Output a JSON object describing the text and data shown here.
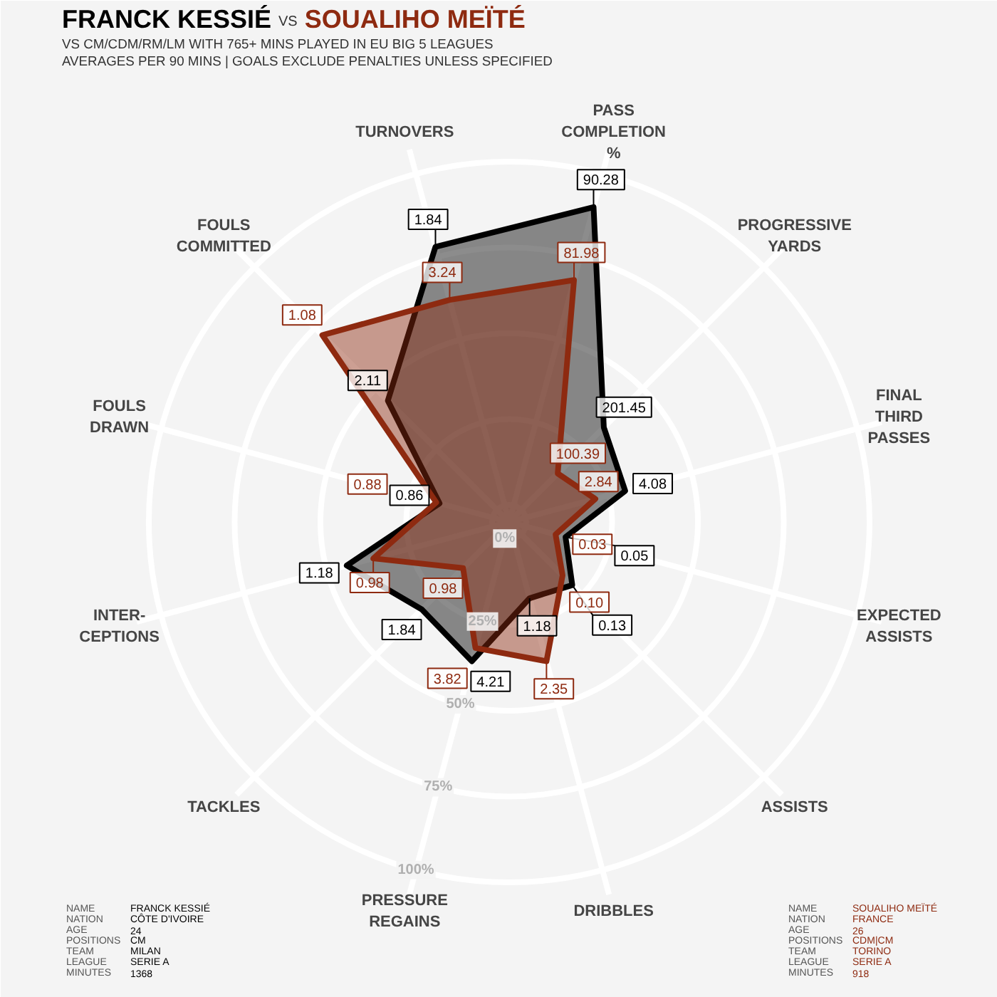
{
  "chart_data": {
    "type": "radar",
    "title": "VS",
    "subtitle": "VS CM/CDM/RM/LM WITH 765+ MINS PLAYED IN EU BIG 5 LEAGUES\nAVERAGES PER 90 MINS | GOALS EXCLUDE PENALTIES UNLESS SPECIFIED",
    "categories": [
      "PASS\nCOMPLETION\n%",
      "PROGRESSIVE\nYARDS",
      "FINAL\nTHIRD\nPASSES",
      "EXPECTED\nASSISTS",
      "ASSISTS",
      "DRIBBLES",
      "PRESSURE\nREGAINS",
      "TACKLES",
      "INTER-\nCEPTIONS",
      "FOULS\nDRAWN",
      "FOULS\nCOMMITTED",
      "TURNOVERS"
    ],
    "series": [
      {
        "name": "FRANCK KESSIÉ",
        "color": "#000000",
        "values": [
          90,
          34,
          30,
          12,
          21,
          18,
          37,
          31,
          44,
          16,
          45,
          78
        ]
      },
      {
        "name": "SOUALIHO MEÏTÉ",
        "color": "#8e2a10",
        "values": [
          68,
          15,
          21,
          9,
          17,
          37,
          33,
          14,
          36,
          17,
          72,
          62
        ]
      }
    ],
    "ylim": [
      -5,
      100
    ],
    "yticks": [
      {
        "value": 0,
        "label": "0%"
      },
      {
        "value": 25,
        "label": "25%"
      },
      {
        "value": 50,
        "label": "50%"
      },
      {
        "value": 75,
        "label": "75%"
      },
      {
        "value": 100,
        "label": "100%"
      }
    ],
    "grid": true,
    "annotations": [
      {
        "text": "90.28",
        "x": "PASS\nCOMPLETION\n%"
      },
      {
        "text": "201.45",
        "x": "PROGRESSIVE\nYARDS"
      },
      {
        "text": "4.08",
        "x": "FINAL\nTHIRD\nPASSES"
      },
      {
        "text": "0.05",
        "x": "EXPECTED\nASSISTS"
      },
      {
        "text": "0.13",
        "x": "ASSISTS"
      },
      {
        "text": "1.18",
        "x": "DRIBBLES"
      },
      {
        "text": "4.21",
        "x": "PRESSURE\nREGAINS"
      },
      {
        "text": "1.84",
        "x": "TACKLES"
      },
      {
        "text": "1.18",
        "x": "INTER-\nCEPTIONS"
      },
      {
        "text": "0.86",
        "x": "FOULS\nDRAWN"
      },
      {
        "text": "2.11",
        "x": "FOULS\nCOMMITTED"
      },
      {
        "text": "1.84",
        "x": "TURNOVERS"
      },
      {
        "text": "81.98",
        "x": "PASS\nCOMPLETION\n%"
      },
      {
        "text": "100.39",
        "x": "PROGRESSIVE\nYARDS"
      },
      {
        "text": "2.84",
        "x": "FINAL\nTHIRD\nPASSES"
      },
      {
        "text": "0.03",
        "x": "EXPECTED\nASSISTS"
      },
      {
        "text": "0.10",
        "x": "ASSISTS"
      },
      {
        "text": "2.35",
        "x": "DRIBBLES"
      },
      {
        "text": "3.82",
        "x": "PRESSURE\nREGAINS"
      },
      {
        "text": "0.98",
        "x": "TACKLES"
      },
      {
        "text": "0.98",
        "x": "INTER-\nCEPTIONS"
      },
      {
        "text": "0.88",
        "x": "FOULS\nDRAWN"
      },
      {
        "text": "1.08",
        "x": "FOULS\nCOMMITTED"
      },
      {
        "text": "3.24",
        "x": "TURNOVERS"
      },
      "NAME",
      "FRANCK KESSIÉ",
      "NATION",
      "CÔTE D'IVOIRE",
      "AGE",
      "24",
      "POSITIONS",
      "CM",
      "TEAM",
      "MILAN",
      "LEAGUE",
      "SERIE A",
      "MINUTES",
      "1368",
      "NAME",
      "SOUALIHO MEÏTÉ",
      "NATION",
      "FRANCE",
      "AGE",
      "26",
      "POSITIONS",
      "CDM|CM",
      "TEAM",
      "TORINO",
      "LEAGUE",
      "SERIE A",
      "MINUTES",
      "918"
    ]
  }
}
